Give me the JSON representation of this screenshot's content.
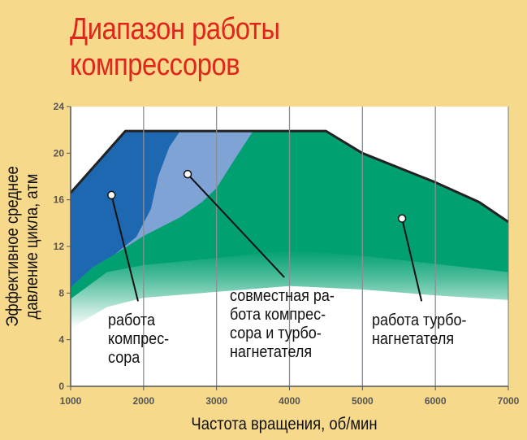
{
  "chart_data": {
    "type": "area",
    "title": "Диапазон работы компрессоров",
    "xlabel": "Частота вращения, об/мин",
    "ylabel": "Эффективное среднее давление цикла, атм",
    "ylabel_lines": [
      "Эффективное среднее",
      "давление цикла, атм"
    ],
    "xlim": [
      1000,
      7000
    ],
    "ylim": [
      0,
      24
    ],
    "xticks": [
      1000,
      2000,
      3000,
      4000,
      5000,
      6000,
      7000
    ],
    "yticks": [
      0,
      4,
      8,
      12,
      16,
      20,
      24
    ],
    "grid": "vertical",
    "envelope": [
      [
        1000,
        16.6
      ],
      [
        1750,
        21.9
      ],
      [
        4500,
        21.9
      ],
      [
        5000,
        20
      ],
      [
        6000,
        17.5
      ],
      [
        6600,
        15.8
      ],
      [
        7000,
        14.1
      ]
    ],
    "regions": [
      {
        "name": "работа компрессора",
        "color": "#1d68b0",
        "lower": [
          [
            1000,
            8.5
          ],
          [
            1300,
            10.2
          ],
          [
            1600,
            11.3
          ]
        ],
        "right": [
          [
            1600,
            11.3
          ],
          [
            1900,
            12.8
          ],
          [
            2100,
            15.2
          ],
          [
            2200,
            18
          ],
          [
            2350,
            20.5
          ],
          [
            2500,
            21.9
          ]
        ]
      },
      {
        "name": "совместная работа компрессора и турбонагнетателя",
        "color": "#7fa3d4",
        "right": [
          [
            1600,
            11.3
          ],
          [
            2000,
            12.9
          ],
          [
            2500,
            14.5
          ],
          [
            2800,
            15.8
          ],
          [
            3000,
            17
          ],
          [
            3200,
            19
          ],
          [
            3500,
            21.9
          ]
        ]
      },
      {
        "name": "работа турбонагнетателя",
        "color": "#00a070"
      }
    ],
    "fade_top": [
      [
        1000,
        7.5
      ],
      [
        1500,
        9.8
      ],
      [
        2000,
        10.4
      ],
      [
        3000,
        11
      ],
      [
        4000,
        11.7
      ],
      [
        5000,
        11.2
      ],
      [
        6000,
        10.5
      ],
      [
        7000,
        9.8
      ]
    ],
    "fade_bottom": [
      [
        1000,
        5
      ],
      [
        1500,
        6.8
      ],
      [
        2000,
        7.6
      ],
      [
        3000,
        8.1
      ],
      [
        4000,
        8.6
      ],
      [
        5000,
        8.3
      ],
      [
        6000,
        7.8
      ],
      [
        7000,
        7.4
      ]
    ],
    "annotations": [
      {
        "lines": [
          "работа",
          "компрес-",
          "сора"
        ],
        "dot": [
          1560,
          16.4
        ],
        "end": [
          1924,
          7.3
        ]
      },
      {
        "lines": [
          "совместная ра-",
          "бота компрес-",
          "сора и турбо-",
          "нагнетателя"
        ],
        "dot": [
          2604,
          18.2
        ],
        "end": [
          3929,
          9.35
        ]
      },
      {
        "lines": [
          "работа турбо-",
          "нагнетателя"
        ],
        "dot": [
          5543,
          14.4
        ],
        "end": [
          5811,
          7.3
        ]
      }
    ]
  },
  "title_lines": [
    "Диапазон работы",
    "компрессоров"
  ]
}
